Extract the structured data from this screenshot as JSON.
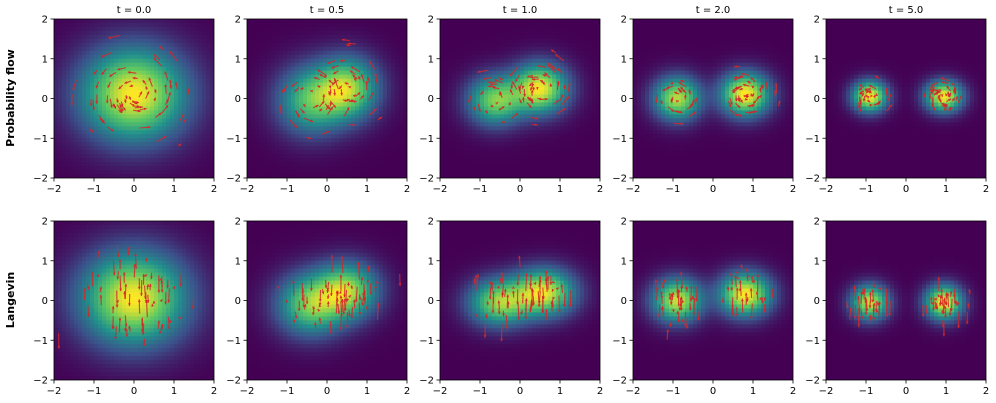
{
  "figure": {
    "row_labels": [
      "Probability flow",
      "Langevin"
    ],
    "col_titles": [
      "t = 0.0",
      "t = 0.5",
      "t = 1.0",
      "t = 2.0",
      "t = 5.0"
    ]
  },
  "chart_data": {
    "type": "heatmap",
    "layout": "2 rows x 5 columns of density heatmaps with red arrow overlays",
    "colormap": "viridis",
    "colormap_stops": [
      "#440154",
      "#3b528b",
      "#21918c",
      "#5ec962",
      "#fde725"
    ],
    "arrow_color": "#d62728",
    "background_color": "#440154",
    "xlim": [
      -2,
      2
    ],
    "ylim": [
      -2,
      2
    ],
    "xticks": [
      -2,
      -1,
      0,
      1,
      2
    ],
    "yticks": [
      -2,
      -1,
      0,
      1,
      2
    ],
    "grid": false,
    "times": [
      0.0,
      0.5,
      1.0,
      2.0,
      5.0
    ],
    "rows": [
      {
        "label": "Probability flow",
        "arrow_style": "rotational",
        "panels": [
          {
            "t": 0.0,
            "modes": [
              {
                "x": 0.0,
                "y": 0.1,
                "sx": 0.85,
                "sy": 0.75,
                "w": 1.0
              }
            ]
          },
          {
            "t": 0.5,
            "modes": [
              {
                "x": -0.4,
                "y": -0.05,
                "sx": 0.55,
                "sy": 0.55,
                "w": 0.7
              },
              {
                "x": 0.5,
                "y": 0.25,
                "sx": 0.5,
                "sy": 0.5,
                "w": 0.9
              }
            ]
          },
          {
            "t": 1.0,
            "modes": [
              {
                "x": -0.6,
                "y": -0.05,
                "sx": 0.45,
                "sy": 0.4,
                "w": 0.7
              },
              {
                "x": 0.5,
                "y": 0.25,
                "sx": 0.45,
                "sy": 0.4,
                "w": 0.9
              }
            ]
          },
          {
            "t": 2.0,
            "modes": [
              {
                "x": -0.9,
                "y": 0.0,
                "sx": 0.38,
                "sy": 0.35,
                "w": 0.85
              },
              {
                "x": 0.8,
                "y": 0.1,
                "sx": 0.4,
                "sy": 0.35,
                "w": 1.0
              }
            ]
          },
          {
            "t": 5.0,
            "modes": [
              {
                "x": -0.9,
                "y": 0.05,
                "sx": 0.28,
                "sy": 0.25,
                "w": 1.0
              },
              {
                "x": 0.95,
                "y": 0.05,
                "sx": 0.3,
                "sy": 0.25,
                "w": 1.0
              }
            ]
          }
        ]
      },
      {
        "label": "Langevin",
        "arrow_style": "vertical",
        "panels": [
          {
            "t": 0.0,
            "modes": [
              {
                "x": 0.0,
                "y": 0.05,
                "sx": 0.85,
                "sy": 0.75,
                "w": 1.0
              }
            ]
          },
          {
            "t": 0.5,
            "modes": [
              {
                "x": -0.4,
                "y": -0.1,
                "sx": 0.55,
                "sy": 0.5,
                "w": 0.85
              },
              {
                "x": 0.5,
                "y": 0.25,
                "sx": 0.5,
                "sy": 0.45,
                "w": 0.9
              }
            ]
          },
          {
            "t": 1.0,
            "modes": [
              {
                "x": -0.5,
                "y": -0.05,
                "sx": 0.5,
                "sy": 0.38,
                "w": 0.85
              },
              {
                "x": 0.6,
                "y": 0.2,
                "sx": 0.5,
                "sy": 0.38,
                "w": 1.0
              }
            ]
          },
          {
            "t": 2.0,
            "modes": [
              {
                "x": -0.9,
                "y": 0.0,
                "sx": 0.4,
                "sy": 0.35,
                "w": 0.9
              },
              {
                "x": 0.8,
                "y": 0.15,
                "sx": 0.42,
                "sy": 0.35,
                "w": 1.0
              }
            ]
          },
          {
            "t": 5.0,
            "modes": [
              {
                "x": -0.9,
                "y": -0.05,
                "sx": 0.3,
                "sy": 0.28,
                "w": 0.9
              },
              {
                "x": 0.95,
                "y": -0.05,
                "sx": 0.3,
                "sy": 0.28,
                "w": 1.0
              }
            ]
          }
        ]
      }
    ]
  }
}
